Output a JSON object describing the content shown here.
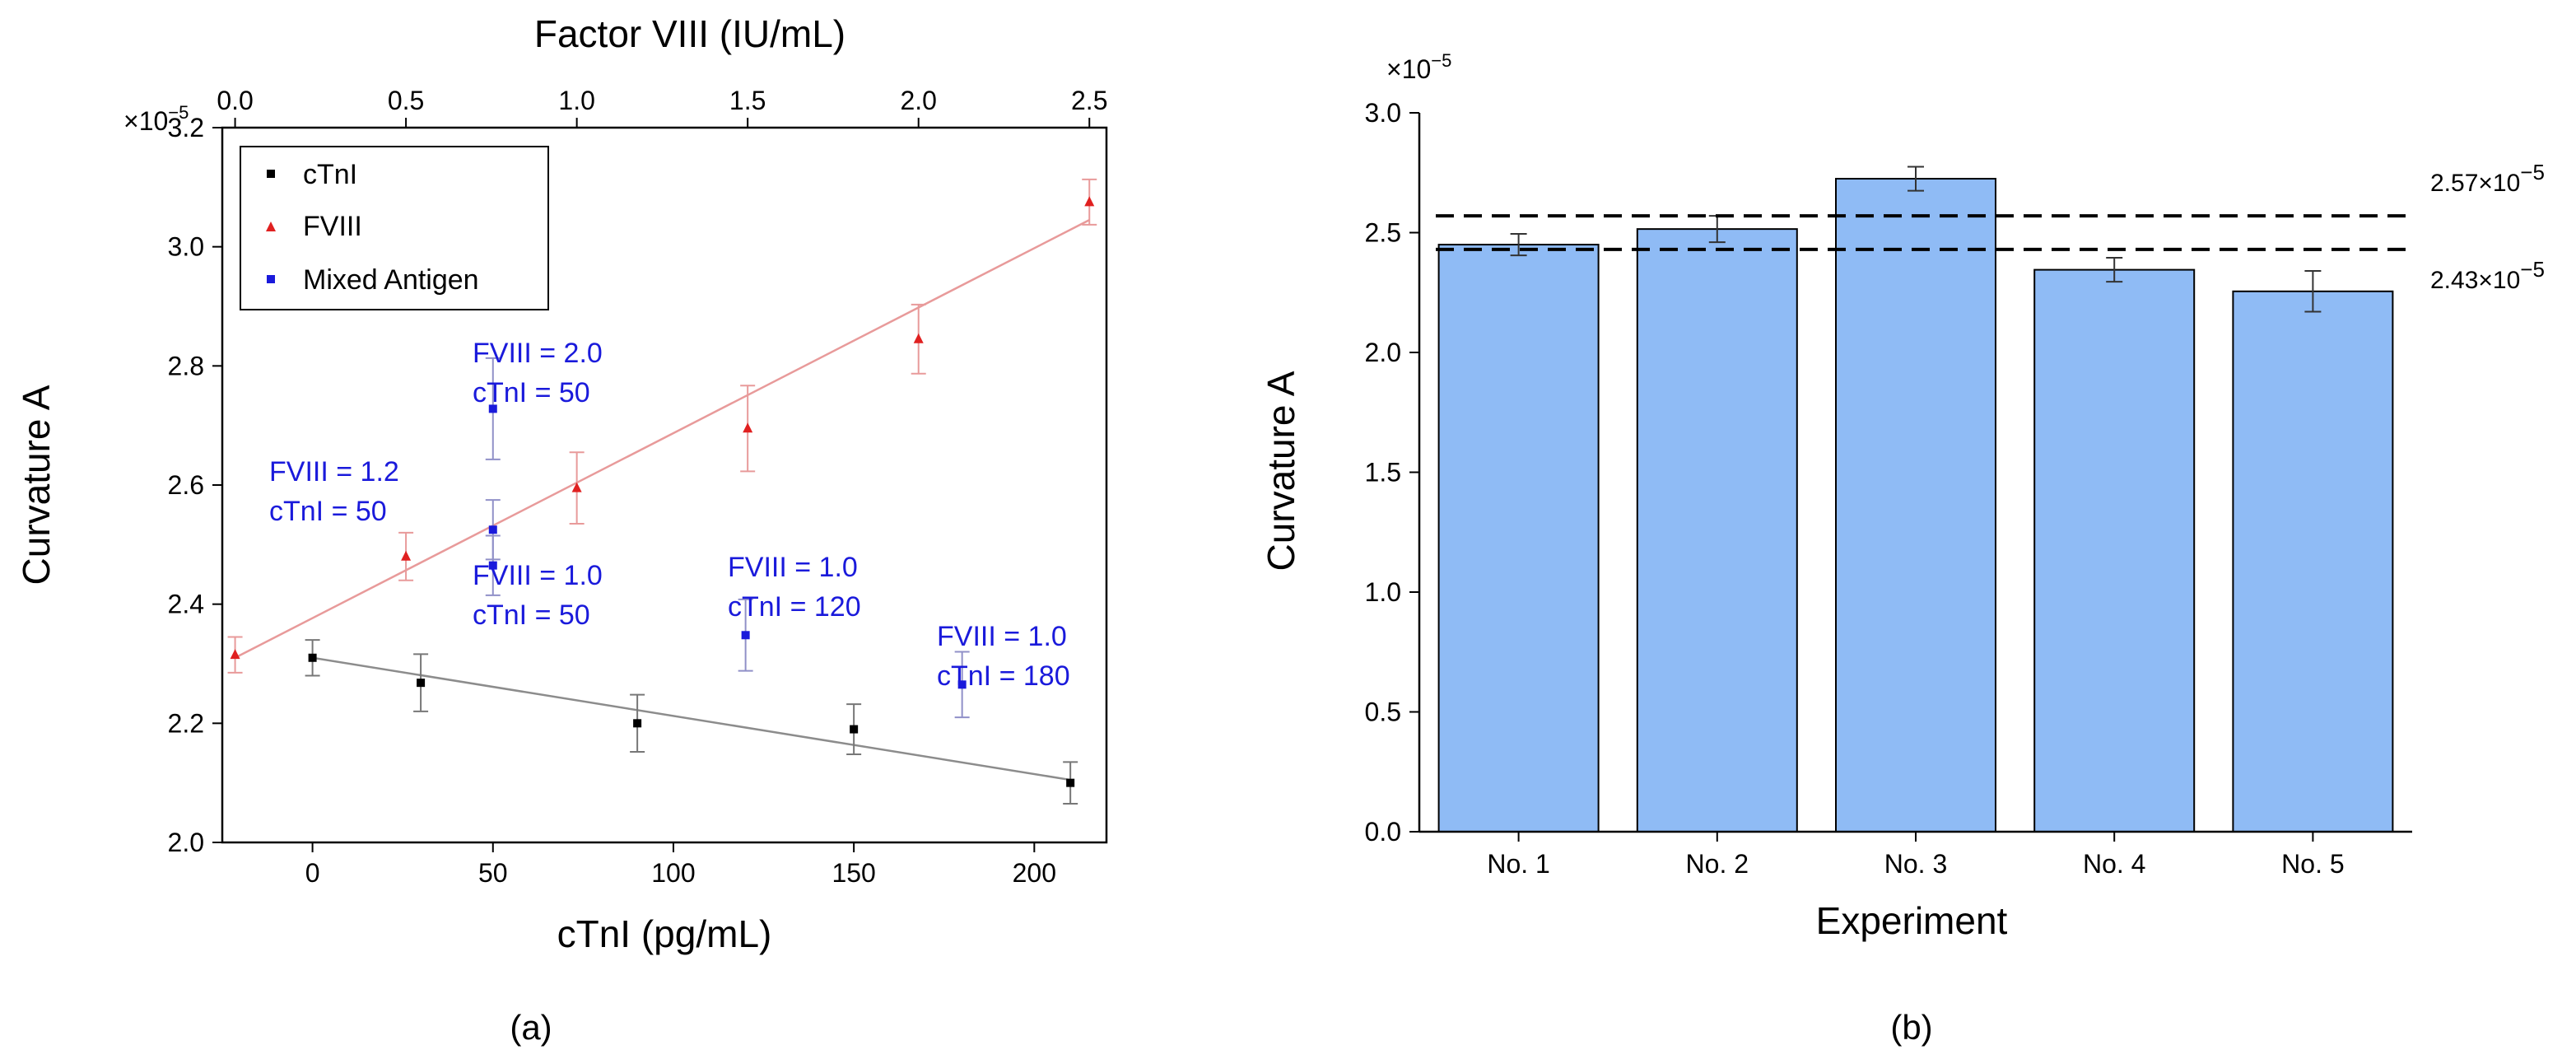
{
  "chart_data": [
    {
      "id": "a",
      "type": "scatter",
      "panel_label": "(a)",
      "xlabel": "cTnI (pg/mL)",
      "x2label": "Factor VIII (IU/mL)",
      "ylabel": "Curvature A",
      "y_multiplier": "×10",
      "y_multiplier_exp": "−5",
      "xlim": [
        -25,
        220
      ],
      "x2lim": [
        -0.0375,
        2.55
      ],
      "ylim": [
        2.0,
        3.2
      ],
      "x_ticks": [
        0,
        50,
        100,
        150,
        200
      ],
      "x_tick_labels": [
        "0",
        "50",
        "100",
        "150",
        "200"
      ],
      "x2_ticks": [
        0.0,
        0.5,
        1.0,
        1.5,
        2.0,
        2.5
      ],
      "x2_tick_labels": [
        "0.0",
        "0.5",
        "1.0",
        "1.5",
        "2.0",
        "2.5"
      ],
      "y_ticks": [
        2.0,
        2.2,
        2.4,
        2.6,
        2.8,
        3.0,
        3.2
      ],
      "y_tick_labels": [
        "2.0",
        "2.2",
        "2.4",
        "2.6",
        "2.8",
        "3.0",
        "3.2"
      ],
      "legend": [
        {
          "name": "cTnI",
          "color": "#000000",
          "marker": "square"
        },
        {
          "name": "FVIII",
          "color": "#e02020",
          "marker": "triangle"
        },
        {
          "name": "Mixed Antigen",
          "color": "#1a1adb",
          "marker": "square"
        }
      ],
      "legend_position": "top-left",
      "series": [
        {
          "name": "cTnI",
          "axis": "bottom",
          "color": "#000000",
          "marker": "square",
          "x": [
            0,
            30,
            90,
            150,
            210
          ],
          "y": [
            2.31,
            2.268,
            2.2,
            2.19,
            2.1
          ],
          "err": [
            0.03,
            0.048,
            0.048,
            0.042,
            0.035
          ],
          "fit": {
            "x": [
              0,
              210
            ],
            "y": [
              2.31,
              2.105
            ],
            "color": "#8c8c8c"
          }
        },
        {
          "name": "FVIII",
          "axis": "top",
          "color": "#e02020",
          "marker": "triangle",
          "x": [
            0.0,
            0.5,
            1.0,
            1.5,
            2.0,
            2.5
          ],
          "y": [
            2.315,
            2.48,
            2.595,
            2.695,
            2.845,
            3.075
          ],
          "err": [
            0.03,
            0.04,
            0.06,
            0.072,
            0.058,
            0.038
          ],
          "fit": {
            "x": [
              0.0,
              2.5
            ],
            "y": [
              2.31,
              3.045
            ],
            "color": "#e89a9a"
          }
        },
        {
          "name": "Mixed Antigen",
          "axis": "bottom",
          "color": "#1a1adb",
          "marker": "square",
          "x": [
            50,
            50,
            50,
            120,
            180
          ],
          "y": [
            2.728,
            2.525,
            2.465,
            2.348,
            2.265
          ],
          "err": [
            0.085,
            0.05,
            0.05,
            0.06,
            0.055
          ]
        }
      ],
      "annotations": [
        {
          "line1": "FVIII = 2.0",
          "line2": "cTnI = 50"
        },
        {
          "line1": "FVIII = 1.2",
          "line2": "cTnI = 50"
        },
        {
          "line1": "FVIII = 1.0",
          "line2": "cTnI = 50"
        },
        {
          "line1": "FVIII = 1.0",
          "line2": "cTnI = 120"
        },
        {
          "line1": "FVIII = 1.0",
          "line2": "cTnI = 180"
        }
      ]
    },
    {
      "id": "b",
      "type": "bar",
      "panel_label": "(b)",
      "xlabel": "Experiment",
      "ylabel": "Curvature A",
      "y_multiplier": "×10",
      "y_multiplier_exp": "−5",
      "categories": [
        "No. 1",
        "No. 2",
        "No. 3",
        "No. 4",
        "No. 5"
      ],
      "values": [
        2.45,
        2.515,
        2.725,
        2.345,
        2.255
      ],
      "err": [
        0.045,
        0.055,
        0.05,
        0.05,
        0.085
      ],
      "ylim": [
        0.0,
        3.0
      ],
      "y_ticks": [
        0.0,
        0.5,
        1.0,
        1.5,
        2.0,
        2.5,
        3.0
      ],
      "y_tick_labels": [
        "0.0",
        "0.5",
        "1.0",
        "1.5",
        "2.0",
        "2.5",
        "3.0"
      ],
      "bar_color": "#8fbbf5",
      "reference_lines": [
        {
          "value": 2.57,
          "label": "2.57×10",
          "label_exp": "−5"
        },
        {
          "value": 2.43,
          "label": "2.43×10",
          "label_exp": "−5"
        }
      ]
    }
  ]
}
